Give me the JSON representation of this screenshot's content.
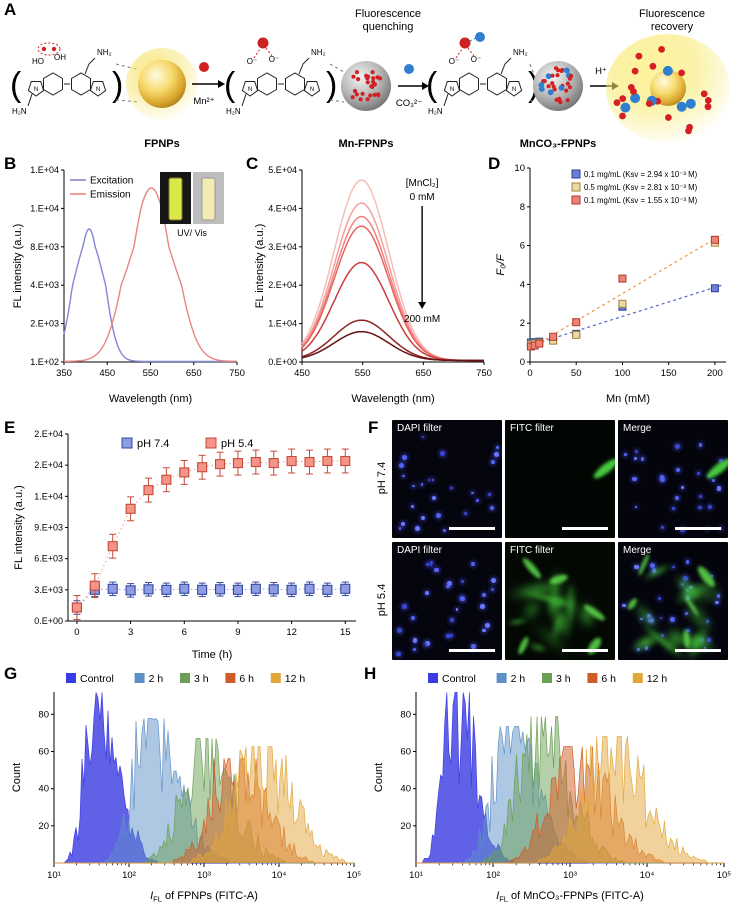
{
  "panel_letters": {
    "A": "A",
    "B": "B",
    "C": "C",
    "D": "D",
    "E": "E",
    "F": "F",
    "G": "G",
    "H": "H"
  },
  "panelA": {
    "quenching": [
      "Fluorescence",
      "quenching"
    ],
    "recovery": [
      "Fluorescence",
      "recovery"
    ],
    "sphere_labels": [
      "FPNPs",
      "Mn-FPNPs",
      "MnCO₃-FPNPs"
    ],
    "ion_labels": {
      "mn": "Mn²⁺",
      "co3": "CO₃²⁻",
      "h": "H⁺"
    },
    "chem_labels": {
      "ho": "HO",
      "oh": "OH",
      "nh2": "NH₂",
      "h2n": "H₂N",
      "n": "N",
      "o": "O⁻"
    }
  },
  "panelF": {
    "row_labels": [
      "pH 7.4",
      "pH 5.4"
    ],
    "cells": [
      {
        "label": "DAPI filter",
        "type": "dapi",
        "dots": 26,
        "seed": 3
      },
      {
        "label": "FITC filter",
        "type": "fitc-sparse",
        "dots": 0,
        "seed": 4
      },
      {
        "label": "Merge",
        "type": "merge-sparse",
        "dots": 26,
        "seed": 5
      },
      {
        "label": "DAPI filter",
        "type": "dapi",
        "dots": 30,
        "seed": 6
      },
      {
        "label": "FITC filter",
        "type": "fitc-dense",
        "dots": 0,
        "seed": 7
      },
      {
        "label": "Merge",
        "type": "merge-dense",
        "dots": 30,
        "seed": 8
      }
    ]
  },
  "chart_data": [
    {
      "id": "chartB",
      "type": "line",
      "xlabel": "Wavelength (nm)",
      "ylabel": "FL intensity (a.u.)",
      "x_ticks": [
        350,
        450,
        550,
        650,
        750
      ],
      "xlim": [
        350,
        750
      ],
      "y_tick_labels": [
        "1.E+02",
        "2.E+03",
        "4.E+03",
        "8.E+03",
        "1.E+04",
        "1.E+04"
      ],
      "y_tick_values": [
        100,
        2000,
        4000,
        8000,
        10000,
        12500
      ],
      "inset_label": "UV/ Vis",
      "series": [
        {
          "name": "Excitation",
          "color": "#8585d6",
          "peak_nm": 408,
          "sigma_nm": 30,
          "peak_intensity": 8800,
          "baseline": 130
        },
        {
          "name": "Emission",
          "color": "#e88585",
          "peak_nm": 552,
          "sigma_nm": 48,
          "peak_intensity": 11200,
          "baseline": 130
        }
      ]
    },
    {
      "id": "chartC",
      "type": "line",
      "xlabel": "Wavelength (nm)",
      "ylabel": "FL intensity (a.u.)",
      "x_ticks": [
        450,
        550,
        650,
        750
      ],
      "xlim": [
        450,
        750
      ],
      "y_tick_labels": [
        "0.E+00",
        "1.E+04",
        "2.E+04",
        "3.E+04",
        "4.E+04",
        "5.E+04"
      ],
      "y_tick_values": [
        0,
        10000,
        20000,
        30000,
        40000,
        50000
      ],
      "annotation": {
        "title": "[MnCl₂]",
        "start": "0 mM",
        "end": "200 mM"
      },
      "peak_nm": 548,
      "sigma_nm": 45,
      "baseline": 400,
      "series": [
        {
          "mncl2_mM": 0,
          "peak_intensity": 47000,
          "color": "#f8bdb9"
        },
        {
          "mncl2_mM": 10,
          "peak_intensity": 41000,
          "color": "#f4a09c"
        },
        {
          "mncl2_mM": 25,
          "peak_intensity": 37500,
          "color": "#ef837f"
        },
        {
          "mncl2_mM": 50,
          "peak_intensity": 35000,
          "color": "#e96562"
        },
        {
          "mncl2_mM": 100,
          "peak_intensity": 25500,
          "color": "#c93e3c"
        },
        {
          "mncl2_mM": 150,
          "peak_intensity": 10500,
          "color": "#8e2321"
        },
        {
          "mncl2_mM": 200,
          "peak_intensity": 7500,
          "color": "#641414"
        }
      ]
    },
    {
      "id": "chartD",
      "type": "scatter",
      "xlabel": "Mn (mM)",
      "ylabel": "F₀/F",
      "x_ticks": [
        0,
        50,
        100,
        150,
        200
      ],
      "y_ticks": [
        0,
        2,
        4,
        6,
        8,
        10
      ],
      "xlim": [
        0,
        212
      ],
      "ylim": [
        0,
        10
      ],
      "series": [
        {
          "name": "0.1 mg/mL (Ksv = 2.94 x 10⁻³ M)",
          "fill": "#6b7fd7",
          "edge": "#2d3f96",
          "x": [
            1,
            5,
            10,
            25,
            50,
            100,
            200
          ],
          "y": [
            1.0,
            1.02,
            1.05,
            1.15,
            1.45,
            2.85,
            3.8
          ],
          "trend": {
            "x": [
              0,
              207
            ],
            "y": [
              0.85,
              3.95
            ],
            "color": "#5566cc"
          }
        },
        {
          "name": "0.5 mg/mL (Ksv = 2.81 x 10⁻³ M)",
          "fill": "#e9d9a4",
          "edge": "#a3823a",
          "x": [
            1,
            5,
            10,
            25,
            50,
            100,
            200
          ],
          "y": [
            0.9,
            0.95,
            1.0,
            1.1,
            1.4,
            3.0,
            6.15
          ],
          "trend": null
        },
        {
          "name": "0.1 mg/mL (Ksv = 1.55 x 10⁻³ M)",
          "fill": "#ee8276",
          "edge": "#b03a2c",
          "x": [
            1,
            5,
            10,
            25,
            50,
            100,
            200
          ],
          "y": [
            0.8,
            0.85,
            0.95,
            1.3,
            2.05,
            4.3,
            6.3
          ],
          "trend": {
            "x": [
              0,
              207
            ],
            "y": [
              0.7,
              6.55
            ],
            "color": "#f09a45"
          }
        }
      ]
    },
    {
      "id": "chartE",
      "type": "line",
      "xlabel": "Time (h)",
      "ylabel": "FL intensity (a.u.)",
      "x_ticks": [
        0,
        3,
        6,
        9,
        12,
        15
      ],
      "xlim": [
        -0.5,
        15.6
      ],
      "y_tick_labels": [
        "0.E+00",
        "3.E+03",
        "6.E+03",
        "9.E+03",
        "1.E+04",
        "2.E+04",
        "2.E+04"
      ],
      "y_tick_values": [
        0,
        3000,
        6000,
        9000,
        12000,
        15000,
        18000
      ],
      "series": [
        {
          "name": "pH 7.4",
          "fill": "#8e9ce4",
          "edge": "#33479f",
          "err": 650,
          "x": [
            0,
            1,
            2,
            3,
            4,
            5,
            6,
            7,
            8,
            9,
            10,
            11,
            12,
            13,
            14,
            15
          ],
          "y": [
            1300,
            3000,
            3100,
            2950,
            3050,
            3000,
            3100,
            3000,
            3050,
            3000,
            3100,
            3050,
            3000,
            3100,
            3000,
            3100
          ]
        },
        {
          "name": "pH 5.4",
          "fill": "#f49488",
          "edge": "#c64a38",
          "err": 1150,
          "x": [
            0,
            1,
            2,
            3,
            4,
            5,
            6,
            7,
            8,
            9,
            10,
            11,
            12,
            13,
            14,
            15
          ],
          "y": [
            1300,
            3400,
            7200,
            10800,
            12600,
            13600,
            14300,
            14800,
            15100,
            15200,
            15300,
            15200,
            15400,
            15300,
            15400,
            15400
          ]
        }
      ]
    },
    {
      "id": "chartG",
      "type": "histogram",
      "ylabel": "Count",
      "xlabel_parts": [
        "I",
        "FL",
        " of FPNPs (FITC-A)"
      ],
      "x_tick_labels": [
        "10¹",
        "10²",
        "10³",
        "10⁴",
        "10⁵"
      ],
      "xlog_range": [
        1,
        5
      ],
      "y_ticks": [
        20,
        40,
        60,
        80
      ],
      "ylim": [
        0,
        92
      ],
      "seed": 7,
      "series": [
        {
          "name": "Control",
          "color": "#3a3ae2",
          "fill_opacity": 0.8,
          "log_center": 1.55,
          "sigma_left": 0.14,
          "sigma_right": 0.28,
          "peak": 85
        },
        {
          "name": "2 h",
          "color": "#5d8fc7",
          "fill_opacity": 0.5,
          "log_center": 2.25,
          "sigma_left": 0.2,
          "sigma_right": 0.38,
          "peak": 72
        },
        {
          "name": "3 h",
          "color": "#6aa053",
          "fill_opacity": 0.5,
          "log_center": 2.95,
          "sigma_left": 0.26,
          "sigma_right": 0.4,
          "peak": 62
        },
        {
          "name": "6 h",
          "color": "#d05b24",
          "fill_opacity": 0.5,
          "log_center": 3.4,
          "sigma_left": 0.3,
          "sigma_right": 0.38,
          "peak": 52
        },
        {
          "name": "12 h",
          "color": "#e3a63a",
          "fill_opacity": 0.5,
          "log_center": 3.72,
          "sigma_left": 0.32,
          "sigma_right": 0.42,
          "peak": 58
        }
      ]
    },
    {
      "id": "chartH",
      "type": "histogram",
      "ylabel": "Count",
      "xlabel_parts": [
        "I",
        "FL",
        " of MnCO₃-FPNPs (FITC-A)"
      ],
      "x_tick_labels": [
        "10¹",
        "10²",
        "10³",
        "10⁴",
        "10⁵"
      ],
      "xlog_range": [
        1,
        5
      ],
      "y_ticks": [
        20,
        40,
        60,
        80
      ],
      "ylim": [
        0,
        92
      ],
      "seed": 11,
      "series": [
        {
          "name": "Control",
          "color": "#3a3ae2",
          "fill_opacity": 0.8,
          "log_center": 1.5,
          "sigma_left": 0.14,
          "sigma_right": 0.26,
          "peak": 85
        },
        {
          "name": "2 h",
          "color": "#5d8fc7",
          "fill_opacity": 0.5,
          "log_center": 2.2,
          "sigma_left": 0.2,
          "sigma_right": 0.36,
          "peak": 68
        },
        {
          "name": "3 h",
          "color": "#6aa053",
          "fill_opacity": 0.5,
          "log_center": 2.55,
          "sigma_left": 0.24,
          "sigma_right": 0.4,
          "peak": 73
        },
        {
          "name": "6 h",
          "color": "#d05b24",
          "fill_opacity": 0.5,
          "log_center": 3.05,
          "sigma_left": 0.3,
          "sigma_right": 0.42,
          "peak": 58
        },
        {
          "name": "12 h",
          "color": "#e3a63a",
          "fill_opacity": 0.5,
          "log_center": 3.5,
          "sigma_left": 0.32,
          "sigma_right": 0.45,
          "peak": 63
        }
      ]
    }
  ]
}
